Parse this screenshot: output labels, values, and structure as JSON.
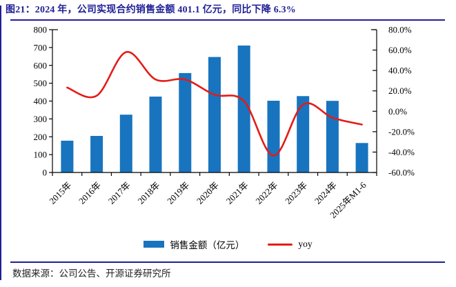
{
  "title": "图21：2024 年，公司实现合约销售金额 401.1 亿元，同比下降 6.3%",
  "source": "数据来源：公司公告、开源证券研究所",
  "colors": {
    "navy_accent": "#1F1F96",
    "bar_blue": "#1874BE",
    "line_red": "#E41B17",
    "axis_black": "#000000"
  },
  "legend": {
    "position": "bottom",
    "items": [
      {
        "label": "销售金额（亿元）",
        "swatch": "bar",
        "color": "#1874BE"
      },
      {
        "label": "yoy",
        "swatch": "line",
        "color": "#E41B17"
      }
    ]
  },
  "chart_data": {
    "type": "bar",
    "subtype": "bar+line dual-axis combo",
    "title": "图21：2024 年，公司实现合约销售金额 401.1 亿元，同比下降 6.3%",
    "categories": [
      "2015年",
      "2016年",
      "2017年",
      "2018年",
      "2019年",
      "2020年",
      "2021年",
      "2022年",
      "2023年",
      "2024年",
      "2025年M1-6"
    ],
    "series": [
      {
        "name": "销售金额（亿元）",
        "type": "bar",
        "axis": "left",
        "color": "#1874BE",
        "values": [
          178,
          205,
          324,
          425,
          557,
          647,
          711,
          402,
          428,
          401.1,
          165
        ]
      },
      {
        "name": "yoy",
        "type": "line",
        "axis": "right",
        "unit": "%",
        "color": "#E41B17",
        "values": [
          23.2,
          15.2,
          58.0,
          31.2,
          31.1,
          16.2,
          9.9,
          -43.5,
          6.5,
          -6.3,
          -13.0
        ]
      }
    ],
    "left_axis": {
      "min": 0,
      "max": 800,
      "step": 100,
      "tick_labels": [
        "800",
        "700",
        "600",
        "500",
        "400",
        "300",
        "200",
        "100",
        "0"
      ]
    },
    "right_axis": {
      "min": -60,
      "max": 80,
      "step": 20,
      "tick_labels": [
        "80.0%",
        "60.0%",
        "40.0%",
        "20.0%",
        "0.0%",
        "-20.0%",
        "-40.0%",
        "-60.0%"
      ]
    },
    "grid": false,
    "legend_position": "bottom",
    "xlabel": "",
    "ylabel": ""
  }
}
